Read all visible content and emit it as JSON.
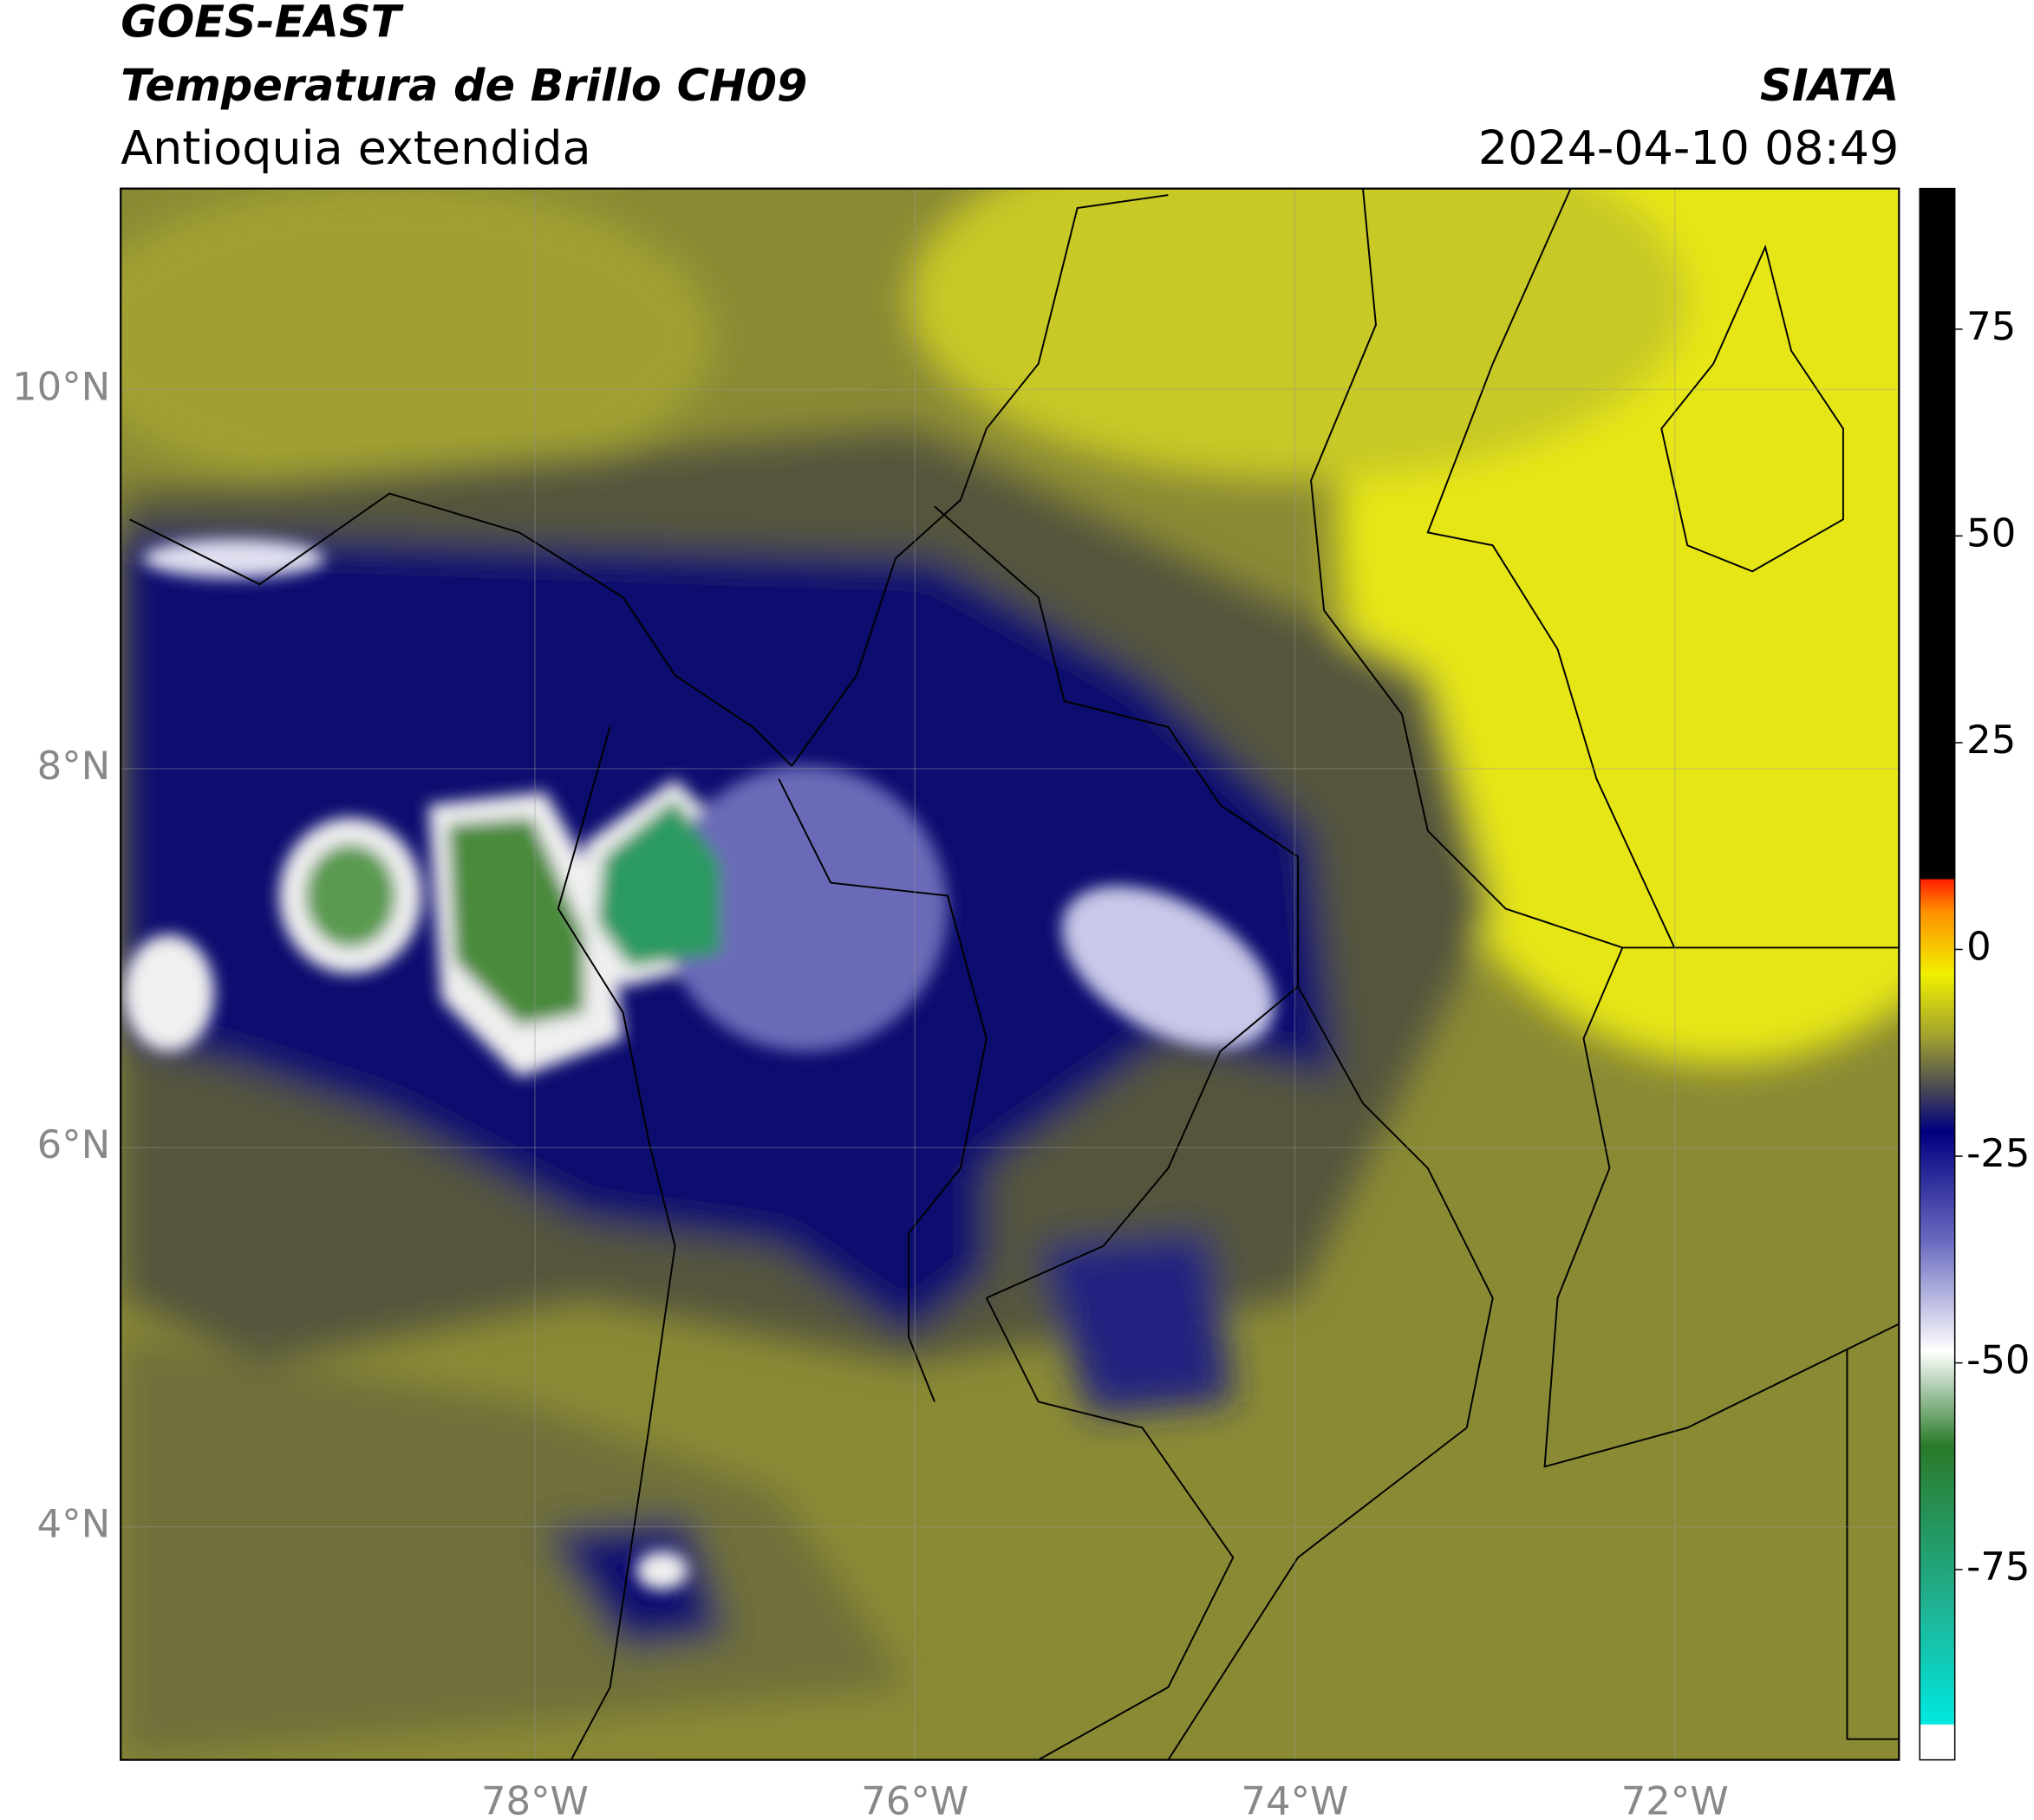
{
  "header": {
    "title": "GOES-EAST",
    "subtitle": "Temperatura de Brillo CH09",
    "region": "Antioquia extendida",
    "agency": "SIATA",
    "datetime": "2024-04-10 08:49"
  },
  "map": {
    "xlim": [
      -80.18,
      -70.82
    ],
    "ylim": [
      2.77,
      11.06
    ],
    "xticks": [
      {
        "value": -78,
        "label": "78°W"
      },
      {
        "value": -76,
        "label": "76°W"
      },
      {
        "value": -74,
        "label": "74°W"
      },
      {
        "value": -72,
        "label": "72°W"
      }
    ],
    "yticks": [
      {
        "value": 4,
        "label": "4°N"
      },
      {
        "value": 6,
        "label": "6°N"
      },
      {
        "value": 8,
        "label": "8°N"
      },
      {
        "value": 10,
        "label": "10°N"
      }
    ],
    "grid": true
  },
  "colorbar": {
    "lim": [
      -98,
      92
    ],
    "ticks": [
      -75,
      -50,
      -25,
      0,
      25,
      50,
      75
    ]
  }
}
